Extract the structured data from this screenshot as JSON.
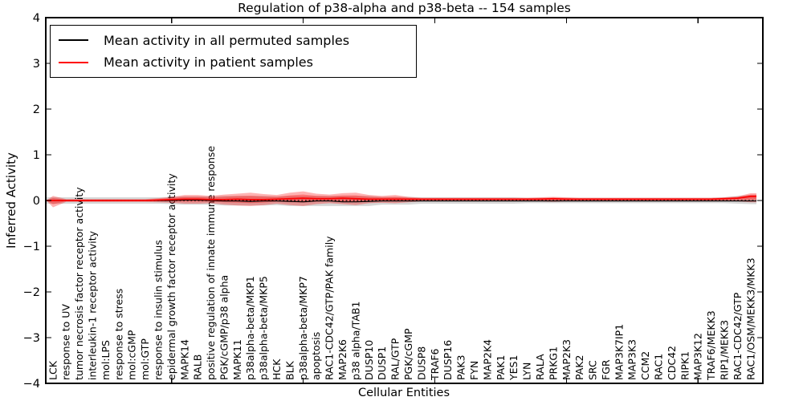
{
  "legend": {
    "items": [
      {
        "label": "Mean activity in all permuted samples",
        "color": "#000000"
      },
      {
        "label": "Mean activity in patient samples",
        "color": "#ff0000"
      }
    ]
  },
  "colors": {
    "patient_line": "#ff0000",
    "permuted_line": "#000000",
    "patient_band": "#ff0000",
    "permuted_band": "#000000",
    "zero_line": "#000000"
  },
  "chart_data": {
    "type": "line",
    "title": "Regulation of p38-alpha and p38-beta -- 154 samples",
    "xlabel": "Cellular Entities",
    "ylabel": "Inferred Activity",
    "ylim": [
      -4,
      4
    ],
    "grid": false,
    "legend_position": "upper left",
    "zero_line_style": "dotted",
    "y_tick_labels": [
      "4",
      "3",
      "2",
      "1",
      "0",
      "−1",
      "−2",
      "−3",
      "−4"
    ],
    "y_tick_values": [
      4,
      3,
      2,
      1,
      0,
      -1,
      -2,
      -3,
      -4
    ],
    "x_major_ticks": [
      10,
      20,
      30,
      40,
      50
    ],
    "categories": [
      "LCK",
      "response to UV",
      "tumor necrosis factor receptor activity",
      "interleukin-1 receptor activity",
      "mol:LPS",
      "response to stress",
      "mol:cGMP",
      "mol:GTP",
      "response to insulin stimulus",
      "epidermal growth factor receptor activity",
      "MAPK14",
      "RALB",
      "positive regulation of innate immune response",
      "PGK/cGMP/p38 alpha",
      "MAPK11",
      "p38alpha-beta/MKP1",
      "p38alpha-beta/MKP5",
      "HCK",
      "BLK",
      "p38alpha-beta/MKP7",
      "apoptosis",
      "RAC1-CDC42/GTP/PAK family",
      "MAP2K6",
      "p38 alpha/TAB1",
      "DUSP10",
      "DUSP1",
      "RAL/GTP",
      "PGK/cGMP",
      "DUSP8",
      "TRAF6",
      "DUSP16",
      "PAK3",
      "FYN",
      "MAP2K4",
      "PAK1",
      "YES1",
      "LYN",
      "RALA",
      "PRKG1",
      "MAP2K3",
      "PAK2",
      "SRC",
      "FGR",
      "MAP3K7IP1",
      "MAP3K3",
      "CCM2",
      "RAC1",
      "CDC42",
      "RIPK1",
      "MAP3K12",
      "TRAF6/MEKK3",
      "RIP1/MEKK3",
      "RAC1-CDC42/GTP",
      "RAC1/OSM/MEKK3/MKK3"
    ],
    "series": [
      {
        "name": "Mean activity in all permuted samples",
        "color": "#000000",
        "values": [
          0,
          0,
          0,
          0,
          0,
          0,
          0,
          0,
          0,
          0,
          0.01,
          0.01,
          0,
          -0.01,
          -0.01,
          -0.02,
          -0.01,
          -0.01,
          -0.02,
          -0.03,
          -0.01,
          -0.01,
          -0.03,
          -0.03,
          -0.02,
          -0.01,
          -0.01,
          -0.01,
          -0.01,
          -0.01,
          -0.01,
          -0.01,
          -0.01,
          -0.01,
          -0.01,
          -0.01,
          -0.01,
          -0.01,
          -0.01,
          -0.01,
          -0.01,
          -0.01,
          -0.01,
          -0.01,
          -0.01,
          -0.01,
          -0.01,
          -0.01,
          -0.01,
          -0.01,
          -0.01,
          -0.01,
          -0.01,
          -0.01
        ]
      },
      {
        "name": "Mean activity in patient samples",
        "color": "#ff0000",
        "values": [
          0,
          0,
          0,
          0,
          0,
          0,
          0,
          0,
          0.01,
          0.02,
          0.03,
          0.03,
          0.02,
          0.02,
          0.03,
          0.02,
          0.02,
          0.03,
          0.04,
          0.05,
          0.04,
          0.04,
          0.05,
          0.04,
          0.03,
          0.03,
          0.03,
          0.03,
          0.03,
          0.03,
          0.03,
          0.03,
          0.03,
          0.03,
          0.03,
          0.03,
          0.03,
          0.03,
          0.04,
          0.03,
          0.03,
          0.03,
          0.03,
          0.03,
          0.03,
          0.03,
          0.03,
          0.03,
          0.03,
          0.03,
          0.03,
          0.04,
          0.05,
          0.09
        ]
      }
    ],
    "bands": [
      {
        "name": "permuted-range",
        "color": "#000000",
        "upper": [
          0.07,
          0.07,
          0.07,
          0.07,
          0.07,
          0.07,
          0.07,
          0.07,
          0.07,
          0.08,
          0.09,
          0.09,
          0.09,
          0.1,
          0.1,
          0.1,
          0.1,
          0.09,
          0.1,
          0.1,
          0.1,
          0.1,
          0.1,
          0.1,
          0.1,
          0.08,
          0.08,
          0.08,
          0.07,
          0.07,
          0.07,
          0.07,
          0.07,
          0.07,
          0.07,
          0.07,
          0.06,
          0.06,
          0.06,
          0.06,
          0.06,
          0.06,
          0.06,
          0.06,
          0.06,
          0.06,
          0.06,
          0.06,
          0.06,
          0.06,
          0.06,
          0.07,
          0.1,
          0.12
        ],
        "lower": [
          -0.07,
          -0.07,
          -0.07,
          -0.07,
          -0.07,
          -0.07,
          -0.07,
          -0.07,
          -0.07,
          -0.08,
          -0.09,
          -0.09,
          -0.09,
          -0.11,
          -0.11,
          -0.11,
          -0.11,
          -0.1,
          -0.12,
          -0.12,
          -0.12,
          -0.12,
          -0.12,
          -0.12,
          -0.12,
          -0.09,
          -0.09,
          -0.09,
          -0.07,
          -0.07,
          -0.07,
          -0.07,
          -0.07,
          -0.07,
          -0.07,
          -0.07,
          -0.06,
          -0.06,
          -0.06,
          -0.06,
          -0.06,
          -0.06,
          -0.06,
          -0.06,
          -0.06,
          -0.06,
          -0.06,
          -0.06,
          -0.06,
          -0.06,
          -0.06,
          -0.06,
          -0.07,
          -0.08
        ]
      },
      {
        "name": "patient-range",
        "color": "#ff0000",
        "upper": [
          0.1,
          0.03,
          0.03,
          0.03,
          0.03,
          0.03,
          0.03,
          0.03,
          0.05,
          0.08,
          0.12,
          0.12,
          0.1,
          0.13,
          0.15,
          0.17,
          0.14,
          0.12,
          0.17,
          0.2,
          0.15,
          0.13,
          0.16,
          0.17,
          0.12,
          0.1,
          0.12,
          0.08,
          0.06,
          0.06,
          0.06,
          0.06,
          0.06,
          0.06,
          0.06,
          0.06,
          0.06,
          0.07,
          0.08,
          0.07,
          0.06,
          0.06,
          0.06,
          0.06,
          0.06,
          0.06,
          0.06,
          0.06,
          0.06,
          0.06,
          0.06,
          0.07,
          0.09,
          0.16
        ],
        "lower": [
          -0.15,
          -0.03,
          -0.03,
          -0.03,
          -0.03,
          -0.03,
          -0.03,
          -0.03,
          -0.04,
          -0.05,
          -0.07,
          -0.07,
          -0.06,
          -0.09,
          -0.11,
          -0.12,
          -0.1,
          -0.07,
          -0.1,
          -0.12,
          -0.08,
          -0.06,
          -0.08,
          -0.1,
          -0.06,
          -0.05,
          -0.06,
          -0.04,
          -0.02,
          -0.02,
          -0.02,
          -0.02,
          -0.02,
          -0.02,
          -0.02,
          -0.02,
          -0.02,
          -0.02,
          -0.03,
          -0.02,
          -0.02,
          -0.02,
          -0.02,
          -0.02,
          -0.02,
          -0.02,
          -0.02,
          -0.02,
          -0.02,
          -0.02,
          -0.02,
          -0.02,
          -0.02,
          -0.04
        ]
      }
    ]
  }
}
